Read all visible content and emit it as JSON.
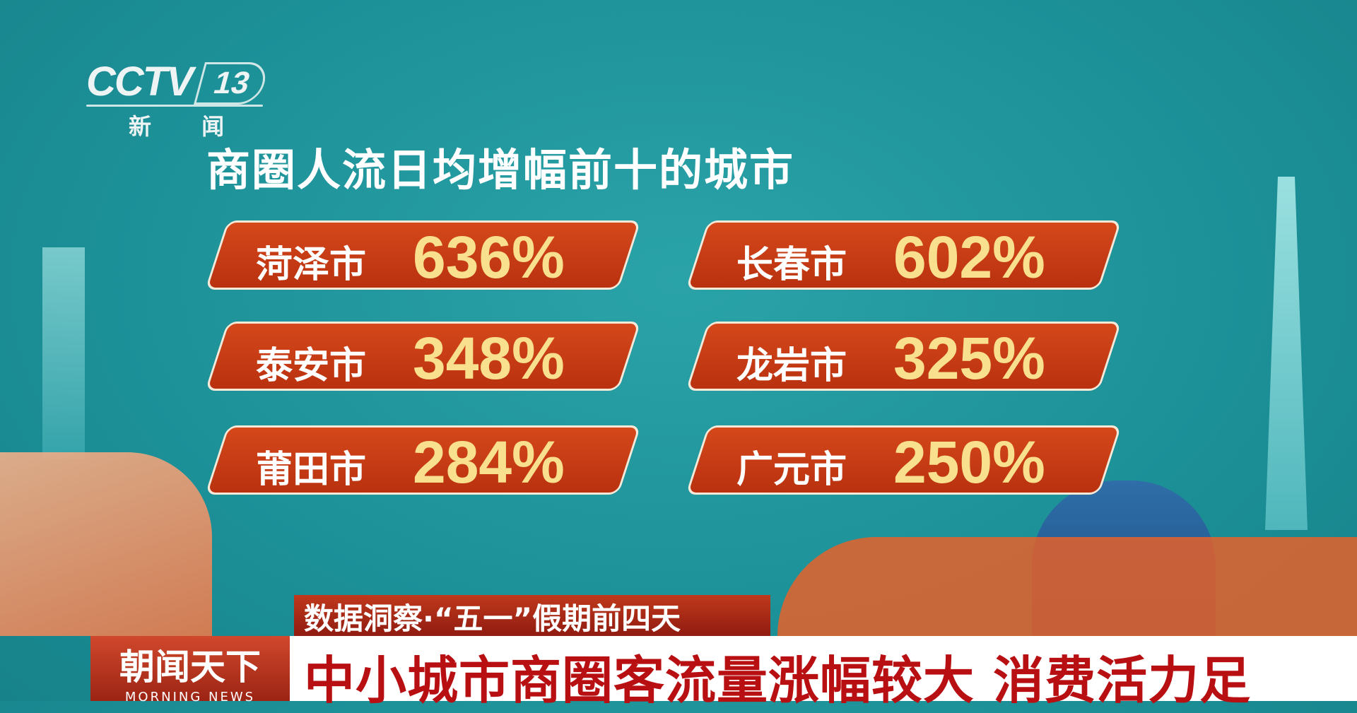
{
  "logo": {
    "brand": "CCTV",
    "channel": "13",
    "channel_name": "新 闻"
  },
  "title": "商圈人流日均增幅前十的城市",
  "cities": [
    {
      "city": "菏泽市",
      "growth": "636%"
    },
    {
      "city": "长春市",
      "growth": "602%"
    },
    {
      "city": "泰安市",
      "growth": "348%"
    },
    {
      "city": "龙岩市",
      "growth": "325%"
    },
    {
      "city": "莆田市",
      "growth": "284%"
    },
    {
      "city": "广元市",
      "growth": "250%"
    }
  ],
  "lower_third": {
    "subtitle": "数据洞察·“五一”假期前四天",
    "show_name": "朝闻天下",
    "show_name_en": "MORNING NEWS",
    "headline": "中小城市商圈客流量涨幅较大 消费活力足"
  },
  "colors": {
    "background": "#1c9097",
    "card": "#c8401a",
    "percent": "#f8e08e",
    "headline": "#b80f12"
  }
}
